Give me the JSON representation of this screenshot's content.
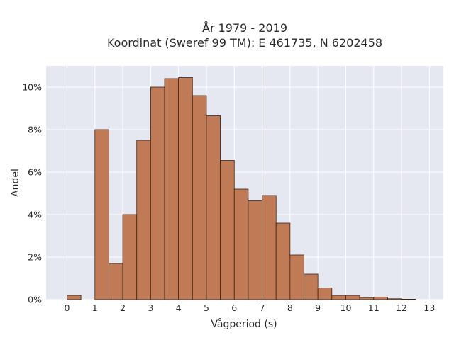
{
  "chart_data": {
    "type": "bar",
    "title": "År 1979 - 2019",
    "subtitle": "Koordinat (Sweref 99 TM): E 461735, N 6202458",
    "xlabel": "Vågperiod (s)",
    "ylabel": "Andel",
    "xlim": [
      -0.75,
      13.5
    ],
    "ylim": [
      0,
      11
    ],
    "x_ticks": [
      0,
      1,
      2,
      3,
      4,
      5,
      6,
      7,
      8,
      9,
      10,
      11,
      12,
      13
    ],
    "y_ticks": [
      0,
      2,
      4,
      6,
      8,
      10
    ],
    "y_tick_labels": [
      "0%",
      "2%",
      "4%",
      "6%",
      "8%",
      "10%"
    ],
    "bin_width": 0.5,
    "bins": [
      {
        "start": 0.0,
        "value": 0.2
      },
      {
        "start": 0.5,
        "value": 0.0
      },
      {
        "start": 1.0,
        "value": 8.0
      },
      {
        "start": 1.5,
        "value": 1.7
      },
      {
        "start": 2.0,
        "value": 4.0
      },
      {
        "start": 2.5,
        "value": 7.5
      },
      {
        "start": 3.0,
        "value": 10.0
      },
      {
        "start": 3.5,
        "value": 10.4
      },
      {
        "start": 4.0,
        "value": 10.45
      },
      {
        "start": 4.5,
        "value": 9.6
      },
      {
        "start": 5.0,
        "value": 8.65
      },
      {
        "start": 5.5,
        "value": 6.55
      },
      {
        "start": 6.0,
        "value": 5.2
      },
      {
        "start": 6.5,
        "value": 4.65
      },
      {
        "start": 7.0,
        "value": 4.9
      },
      {
        "start": 7.5,
        "value": 3.6
      },
      {
        "start": 8.0,
        "value": 2.1
      },
      {
        "start": 8.5,
        "value": 1.2
      },
      {
        "start": 9.0,
        "value": 0.55
      },
      {
        "start": 9.5,
        "value": 0.2
      },
      {
        "start": 10.0,
        "value": 0.2
      },
      {
        "start": 10.5,
        "value": 0.1
      },
      {
        "start": 11.0,
        "value": 0.12
      },
      {
        "start": 11.5,
        "value": 0.04
      },
      {
        "start": 12.0,
        "value": 0.02
      },
      {
        "start": 12.5,
        "value": 0.0
      }
    ],
    "bar_color": "#c07a55",
    "bar_edge_color": "#3a2418",
    "plot_background": "#e6e8f1",
    "grid": true
  }
}
